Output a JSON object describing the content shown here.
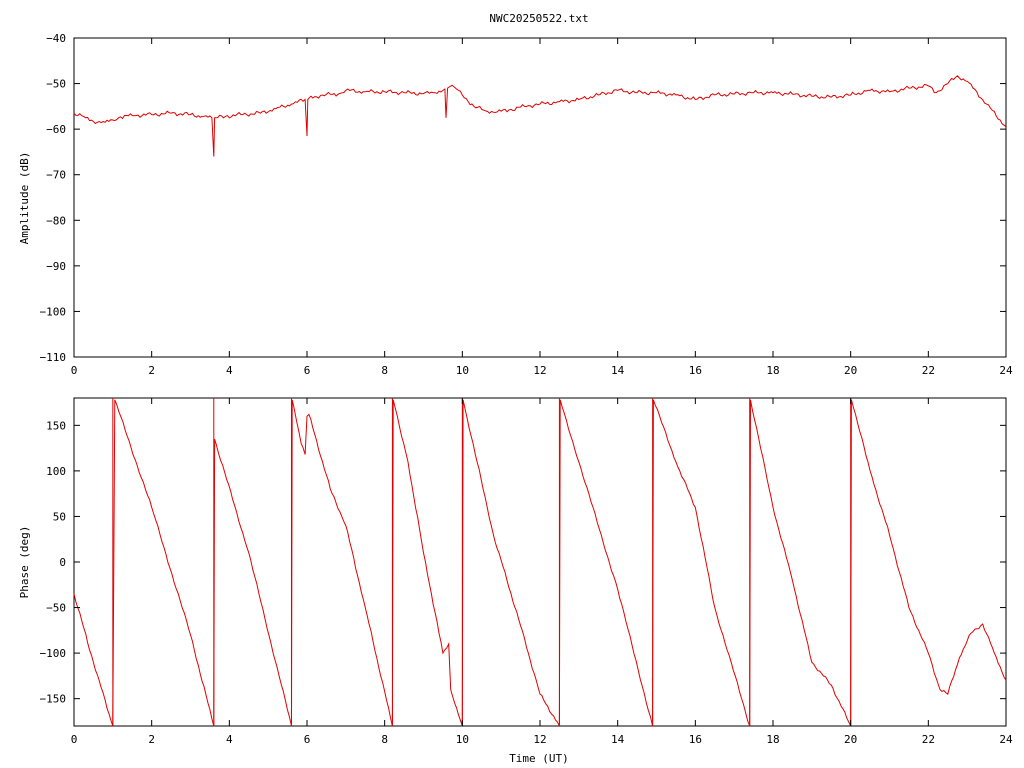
{
  "title": "NWC20250522.txt",
  "colors": {
    "series": "#e00000",
    "axis": "#000000",
    "background": "#ffffff"
  },
  "chart_data": [
    {
      "type": "line",
      "name": "amplitude-chart",
      "ylabel": "Amplitude (dB)",
      "xlim": [
        0,
        24
      ],
      "ylim": [
        -110,
        -40
      ],
      "xticks": [
        0,
        2,
        4,
        6,
        8,
        10,
        12,
        14,
        16,
        18,
        20,
        22,
        24
      ],
      "yticks": [
        -110,
        -100,
        -90,
        -80,
        -70,
        -60,
        -50,
        -40
      ],
      "grid": false,
      "series": [
        {
          "x": [
            0,
            0.3,
            0.6,
            0.8,
            1.0,
            1.2,
            1.5,
            2.0,
            2.5,
            3.0,
            3.3,
            3.55,
            3.6,
            3.62,
            3.65,
            3.9,
            4.3,
            4.8,
            5.2,
            5.6,
            5.95,
            6.0,
            6.02,
            6.05,
            6.4,
            6.8,
            7.0,
            7.5,
            8.0,
            8.5,
            9.0,
            9.3,
            9.55,
            9.58,
            9.62,
            9.8,
            10.0,
            10.3,
            10.6,
            10.9,
            11.2,
            11.6,
            12.0,
            12.5,
            13.0,
            13.5,
            14.0,
            14.5,
            15.0,
            15.5,
            16.0,
            16.5,
            17.0,
            17.5,
            18.0,
            18.5,
            19.0,
            19.5,
            20.0,
            20.5,
            21.0,
            21.5,
            22.0,
            22.2,
            22.5,
            22.75,
            23.0,
            23.5,
            24.0
          ],
          "y": [
            -56.5,
            -57.5,
            -58.5,
            -58.5,
            -58.0,
            -57.3,
            -57.0,
            -56.8,
            -56.5,
            -56.8,
            -57.2,
            -57.5,
            -66.0,
            -57.5,
            -57.5,
            -57.2,
            -56.8,
            -56.5,
            -55.5,
            -54.5,
            -53.5,
            -61.5,
            -53.5,
            -53.2,
            -52.5,
            -52.3,
            -51.5,
            -51.8,
            -51.8,
            -52.0,
            -52.2,
            -52.0,
            -51.2,
            -57.5,
            -51.0,
            -50.8,
            -52.5,
            -55.0,
            -56.0,
            -56.2,
            -55.8,
            -55.0,
            -54.5,
            -54.0,
            -53.5,
            -52.5,
            -51.5,
            -52.0,
            -52.0,
            -52.5,
            -53.5,
            -52.5,
            -52.3,
            -52.0,
            -52.0,
            -52.3,
            -52.8,
            -53.0,
            -52.5,
            -51.5,
            -51.8,
            -51.0,
            -50.5,
            -52.0,
            -50.0,
            -48.3,
            -49.5,
            -54.5,
            -59.5
          ]
        }
      ]
    },
    {
      "type": "line",
      "name": "phase-chart",
      "xlabel": "Time (UT)",
      "ylabel": "Phase (deg)",
      "xlim": [
        0,
        24
      ],
      "ylim": [
        -180,
        180
      ],
      "xticks": [
        0,
        2,
        4,
        6,
        8,
        10,
        12,
        14,
        16,
        18,
        20,
        22,
        24
      ],
      "yticks": [
        -150,
        -100,
        -50,
        0,
        50,
        100,
        150
      ],
      "grid": false,
      "segments": [
        {
          "x": [
            0,
            0.5,
            1.0
          ],
          "y": [
            -35,
            -110,
            -180
          ]
        },
        {
          "x": [
            1.0,
            1.05,
            2.0,
            3.0,
            3.6
          ],
          "y": [
            -180,
            178,
            60,
            -80,
            -180
          ]
        },
        {
          "x": [
            3.6,
            3.62,
            4.5,
            5.6
          ],
          "y": [
            -180,
            135,
            10,
            -180
          ]
        },
        {
          "x": [
            5.6,
            5.62,
            5.85,
            5.95,
            6.0,
            6.05,
            6.6,
            7.0,
            7.5,
            8.2
          ],
          "y": [
            -180,
            178,
            130,
            118,
            160,
            162,
            80,
            40,
            -50,
            -180
          ]
        },
        {
          "x": [
            8.2,
            8.22,
            8.6,
            9.0,
            9.5,
            9.65,
            9.7,
            10.0
          ],
          "y": [
            -180,
            178,
            110,
            10,
            -100,
            -90,
            -140,
            -180
          ]
        },
        {
          "x": [
            10.0,
            10.02,
            10.8,
            11.5,
            12.0,
            12.5
          ],
          "y": [
            -180,
            178,
            30,
            -70,
            -145,
            -180
          ]
        },
        {
          "x": [
            12.5,
            12.52,
            13.0,
            14.0,
            14.9
          ],
          "y": [
            -180,
            178,
            110,
            -30,
            -180
          ]
        },
        {
          "x": [
            14.9,
            14.92,
            15.5,
            16.0,
            16.5,
            17.4
          ],
          "y": [
            -180,
            178,
            110,
            60,
            -50,
            -180
          ]
        },
        {
          "x": [
            17.4,
            17.42,
            18.0,
            18.5,
            19.0,
            19.5,
            20.0
          ],
          "y": [
            -180,
            178,
            60,
            -20,
            -110,
            -135,
            -180
          ]
        },
        {
          "x": [
            20.0,
            20.02,
            20.5,
            21.0,
            21.5,
            22.0,
            22.3,
            22.5,
            22.8,
            23.1,
            23.4,
            23.7,
            24.0
          ],
          "y": [
            -180,
            178,
            100,
            30,
            -50,
            -100,
            -140,
            -145,
            -105,
            -78,
            -68,
            -100,
            -130
          ]
        }
      ],
      "wrap_lines_x": [
        1.0,
        3.6,
        5.6,
        8.2,
        10.0,
        12.5,
        14.9,
        17.4,
        20.0
      ]
    }
  ]
}
